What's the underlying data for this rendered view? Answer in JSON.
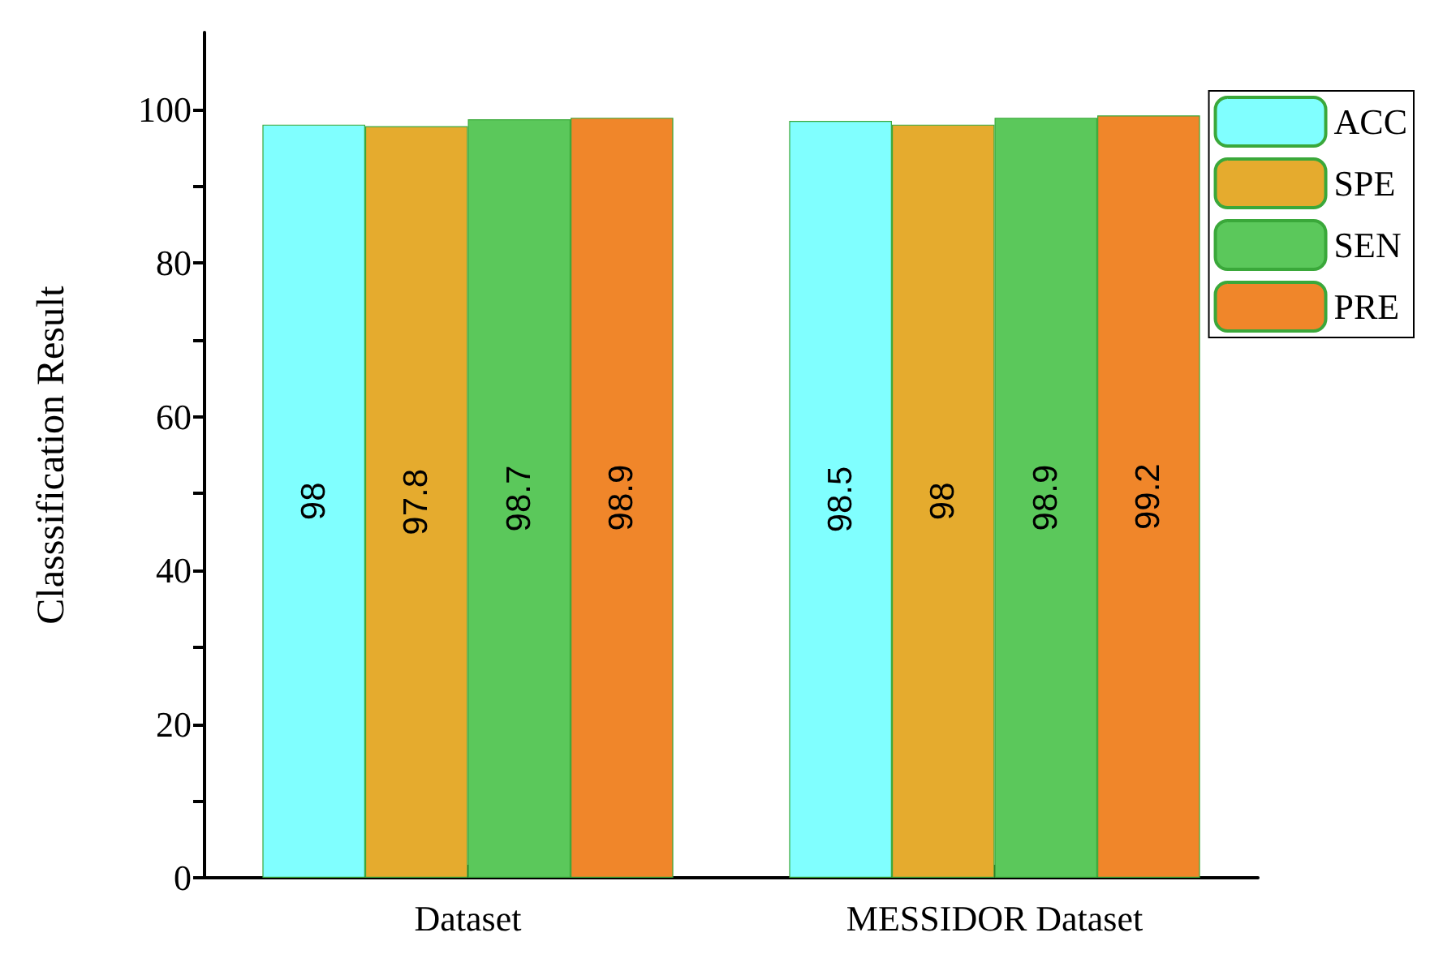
{
  "chart_data": {
    "type": "bar",
    "ylabel": "Classsification Result",
    "categories": [
      "Dataset",
      "MESSIDOR Dataset"
    ],
    "series": [
      {
        "name": "ACC",
        "color": "#80ffff",
        "values": [
          98,
          98.5
        ]
      },
      {
        "name": "SPE",
        "color": "#e5ab2e",
        "values": [
          97.8,
          98
        ]
      },
      {
        "name": "SEN",
        "color": "#5bc85b",
        "values": [
          98.7,
          98.9
        ]
      },
      {
        "name": "PRE",
        "color": "#f0862a",
        "values": [
          98.9,
          99.2
        ]
      }
    ],
    "ylim": [
      0,
      110
    ],
    "yticks": [
      0,
      {
        "value": 10,
        "label": null
      },
      20,
      {
        "value": 30,
        "label": null
      },
      40,
      {
        "value": 50,
        "label": null
      },
      60,
      {
        "value": 70,
        "label": null
      },
      80,
      {
        "value": 90,
        "label": null
      },
      100
    ],
    "data_labels": true,
    "legend": "top right",
    "grid": false
  }
}
